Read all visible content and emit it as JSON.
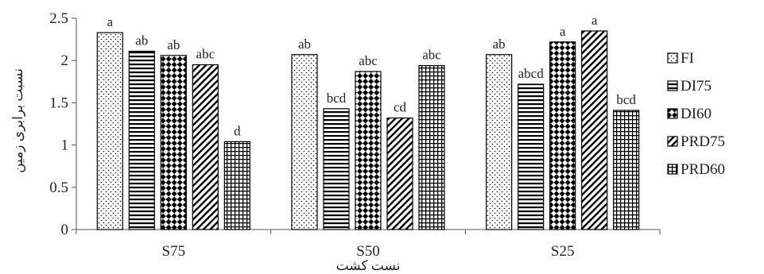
{
  "chart_data": {
    "type": "bar",
    "title": "",
    "xlabel": "نست کشت",
    "ylabel": "نسبت برابری زمین",
    "categories": [
      "S75",
      "S50",
      "S25"
    ],
    "ylim": [
      0,
      2.5
    ],
    "yticks": [
      "0",
      "0.5",
      "1",
      "1.5",
      "2",
      "2.5"
    ],
    "grid": false,
    "legend_position": "right",
    "series": [
      {
        "name": "FI",
        "pattern": "dots",
        "values": [
          2.33,
          2.07,
          2.07
        ],
        "labels": [
          "a",
          "ab",
          "ab"
        ]
      },
      {
        "name": "DI75",
        "pattern": "horizontal-lines",
        "values": [
          2.11,
          1.43,
          1.72
        ],
        "labels": [
          "ab",
          "bcd",
          "abcd"
        ]
      },
      {
        "name": "DI60",
        "pattern": "checker",
        "values": [
          2.06,
          1.87,
          2.22
        ],
        "labels": [
          "ab",
          "abc",
          "a"
        ]
      },
      {
        "name": "PRD75",
        "pattern": "diagonal-lines",
        "values": [
          1.95,
          1.32,
          2.35
        ],
        "labels": [
          "abc",
          "cd",
          "a"
        ]
      },
      {
        "name": "PRD60",
        "pattern": "grid",
        "values": [
          1.04,
          1.94,
          1.41
        ],
        "labels": [
          "d",
          "abc",
          "bcd"
        ]
      }
    ]
  }
}
